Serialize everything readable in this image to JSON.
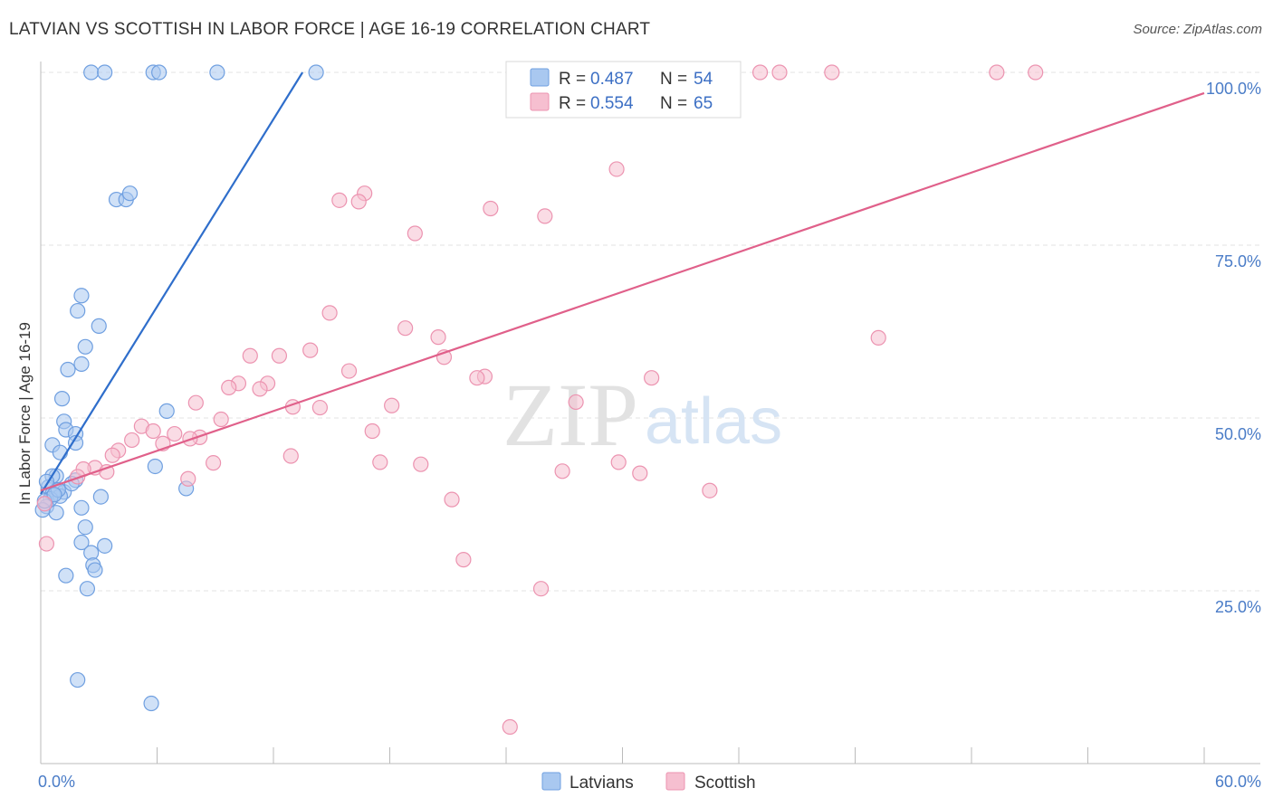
{
  "header": {
    "title": "LATVIAN VS SCOTTISH IN LABOR FORCE | AGE 16-19 CORRELATION CHART",
    "source": "Source: ZipAtlas.com"
  },
  "watermark": {
    "zip": "ZIP",
    "atlas": "atlas"
  },
  "colors": {
    "latvian_fill": "#a9c8f0",
    "latvian_stroke": "#6f9fe0",
    "latvian_line": "#2f6ecb",
    "scottish_fill": "#f6bfd0",
    "scottish_stroke": "#ec93b0",
    "scottish_line": "#e0608a",
    "grid": "#e3e3e3",
    "tick_text": "#4a7cc7"
  },
  "legend": {
    "rows": [
      {
        "r_label": "R = ",
        "r_value": "0.487",
        "n_label": "N = ",
        "n_value": "54"
      },
      {
        "r_label": "R = ",
        "r_value": "0.554",
        "n_label": "N = ",
        "n_value": "65"
      }
    ]
  },
  "chart_data": {
    "type": "scatter",
    "title": "LATVIAN VS SCOTTISH IN LABOR FORCE | AGE 16-19 CORRELATION CHART",
    "xlabel": "",
    "ylabel": "In Labor Force | Age 16-19",
    "xlim": [
      0,
      60
    ],
    "ylim": [
      0,
      100
    ],
    "x_tick_labels": [
      "0.0%",
      "60.0%"
    ],
    "y_ticks": [
      25,
      50,
      75,
      100
    ],
    "y_tick_labels": [
      "25.0%",
      "50.0%",
      "75.0%",
      "100.0%"
    ],
    "grid": true,
    "legend_position": "top-center",
    "series": [
      {
        "name": "Latvians",
        "trend": {
          "x": [
            0.0,
            13.5
          ],
          "y": [
            39.0,
            100.0
          ]
        },
        "points": [
          [
            2.6,
            100
          ],
          [
            3.3,
            100
          ],
          [
            5.8,
            100
          ],
          [
            6.1,
            100
          ],
          [
            9.1,
            100
          ],
          [
            14.2,
            100
          ],
          [
            3.9,
            81.6
          ],
          [
            4.4,
            81.6
          ],
          [
            4.6,
            82.5
          ],
          [
            2.1,
            67.7
          ],
          [
            1.9,
            65.5
          ],
          [
            3.0,
            63.3
          ],
          [
            2.3,
            60.3
          ],
          [
            2.1,
            57.8
          ],
          [
            1.4,
            57.0
          ],
          [
            1.1,
            52.8
          ],
          [
            6.5,
            51.0
          ],
          [
            1.2,
            49.5
          ],
          [
            1.3,
            48.3
          ],
          [
            1.8,
            47.7
          ],
          [
            1.8,
            46.4
          ],
          [
            0.6,
            46.1
          ],
          [
            1.0,
            45.0
          ],
          [
            5.9,
            43.0
          ],
          [
            0.8,
            41.6
          ],
          [
            0.6,
            41.6
          ],
          [
            1.8,
            41.0
          ],
          [
            0.4,
            40.0
          ],
          [
            0.8,
            39.5
          ],
          [
            1.2,
            39.3
          ],
          [
            0.6,
            39.0
          ],
          [
            1.0,
            38.7
          ],
          [
            0.5,
            38.3
          ],
          [
            7.5,
            39.8
          ],
          [
            3.1,
            38.6
          ],
          [
            0.3,
            37.2
          ],
          [
            2.1,
            37.0
          ],
          [
            0.8,
            36.3
          ],
          [
            0.1,
            36.7
          ],
          [
            2.3,
            34.2
          ],
          [
            2.1,
            32.0
          ],
          [
            3.3,
            31.5
          ],
          [
            2.6,
            30.5
          ],
          [
            2.7,
            28.7
          ],
          [
            2.8,
            28.0
          ],
          [
            1.3,
            27.2
          ],
          [
            2.4,
            25.3
          ],
          [
            1.9,
            12.1
          ],
          [
            5.7,
            8.7
          ],
          [
            0.2,
            38.0
          ],
          [
            0.9,
            39.6
          ],
          [
            1.6,
            40.5
          ],
          [
            0.3,
            40.8
          ],
          [
            0.7,
            38.9
          ]
        ]
      },
      {
        "name": "Scottish",
        "trend": {
          "x": [
            0.0,
            60.0
          ],
          "y": [
            39.5,
            97.0
          ]
        },
        "points": [
          [
            24.4,
            100
          ],
          [
            28.6,
            100
          ],
          [
            37.1,
            100
          ],
          [
            38.1,
            100
          ],
          [
            40.8,
            100
          ],
          [
            49.3,
            100
          ],
          [
            51.3,
            100
          ],
          [
            29.7,
            86.0
          ],
          [
            16.7,
            82.5
          ],
          [
            15.4,
            81.5
          ],
          [
            16.4,
            81.3
          ],
          [
            23.2,
            80.3
          ],
          [
            26.0,
            79.2
          ],
          [
            19.3,
            76.7
          ],
          [
            14.9,
            65.2
          ],
          [
            18.8,
            63.0
          ],
          [
            20.5,
            61.7
          ],
          [
            43.2,
            61.6
          ],
          [
            13.9,
            59.8
          ],
          [
            10.8,
            59.0
          ],
          [
            12.3,
            59.0
          ],
          [
            20.8,
            58.8
          ],
          [
            15.9,
            56.8
          ],
          [
            22.9,
            56.0
          ],
          [
            22.5,
            55.8
          ],
          [
            31.5,
            55.8
          ],
          [
            10.2,
            55.0
          ],
          [
            11.7,
            55.0
          ],
          [
            9.7,
            54.4
          ],
          [
            11.3,
            54.2
          ],
          [
            8.0,
            52.2
          ],
          [
            18.1,
            51.8
          ],
          [
            27.6,
            52.3
          ],
          [
            13.0,
            51.6
          ],
          [
            14.4,
            51.5
          ],
          [
            9.3,
            49.8
          ],
          [
            5.2,
            48.8
          ],
          [
            5.8,
            48.1
          ],
          [
            6.9,
            47.7
          ],
          [
            17.1,
            48.1
          ],
          [
            8.2,
            47.2
          ],
          [
            7.7,
            47.0
          ],
          [
            6.3,
            46.3
          ],
          [
            4.7,
            46.8
          ],
          [
            4.0,
            45.3
          ],
          [
            3.7,
            44.6
          ],
          [
            12.9,
            44.5
          ],
          [
            17.5,
            43.6
          ],
          [
            8.9,
            43.5
          ],
          [
            19.6,
            43.3
          ],
          [
            26.9,
            42.3
          ],
          [
            29.8,
            43.6
          ],
          [
            30.9,
            42.0
          ],
          [
            7.6,
            41.2
          ],
          [
            2.8,
            42.8
          ],
          [
            2.2,
            42.6
          ],
          [
            1.9,
            41.5
          ],
          [
            21.2,
            38.2
          ],
          [
            34.5,
            39.5
          ],
          [
            21.8,
            29.5
          ],
          [
            25.8,
            25.3
          ],
          [
            24.2,
            5.3
          ],
          [
            0.3,
            31.8
          ],
          [
            0.2,
            37.6
          ],
          [
            3.4,
            42.2
          ]
        ]
      }
    ]
  },
  "bottom_legend": {
    "latvians": "Latvians",
    "scottish": "Scottish"
  }
}
